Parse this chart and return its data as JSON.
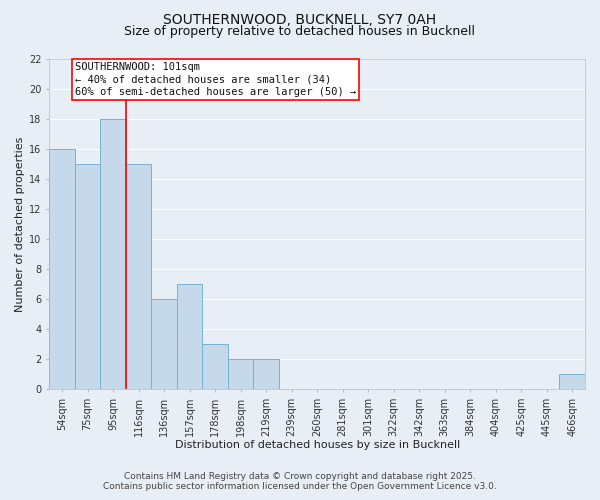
{
  "title": "SOUTHERNWOOD, BUCKNELL, SY7 0AH",
  "subtitle": "Size of property relative to detached houses in Bucknell",
  "xlabel": "Distribution of detached houses by size in Bucknell",
  "ylabel": "Number of detached properties",
  "bin_labels": [
    "54sqm",
    "75sqm",
    "95sqm",
    "116sqm",
    "136sqm",
    "157sqm",
    "178sqm",
    "198sqm",
    "219sqm",
    "239sqm",
    "260sqm",
    "281sqm",
    "301sqm",
    "322sqm",
    "342sqm",
    "363sqm",
    "384sqm",
    "404sqm",
    "425sqm",
    "445sqm",
    "466sqm"
  ],
  "bar_heights": [
    16,
    15,
    18,
    15,
    6,
    7,
    3,
    2,
    2,
    0,
    0,
    0,
    0,
    0,
    0,
    0,
    0,
    0,
    0,
    0,
    1
  ],
  "bar_color": "#c5d9ea",
  "bar_edge_color": "#7ab0d0",
  "background_color": "#e8eef5",
  "grid_color": "#ffffff",
  "red_line_x": 2.5,
  "annotation_text": "SOUTHERNWOOD: 101sqm\n← 40% of detached houses are smaller (34)\n60% of semi-detached houses are larger (50) →",
  "ylim": [
    0,
    22
  ],
  "yticks": [
    0,
    2,
    4,
    6,
    8,
    10,
    12,
    14,
    16,
    18,
    20,
    22
  ],
  "footer_line1": "Contains HM Land Registry data © Crown copyright and database right 2025.",
  "footer_line2": "Contains public sector information licensed under the Open Government Licence v3.0.",
  "title_fontsize": 10,
  "subtitle_fontsize": 9,
  "axis_label_fontsize": 8,
  "tick_fontsize": 7,
  "annotation_fontsize": 7.5,
  "footer_fontsize": 6.5
}
